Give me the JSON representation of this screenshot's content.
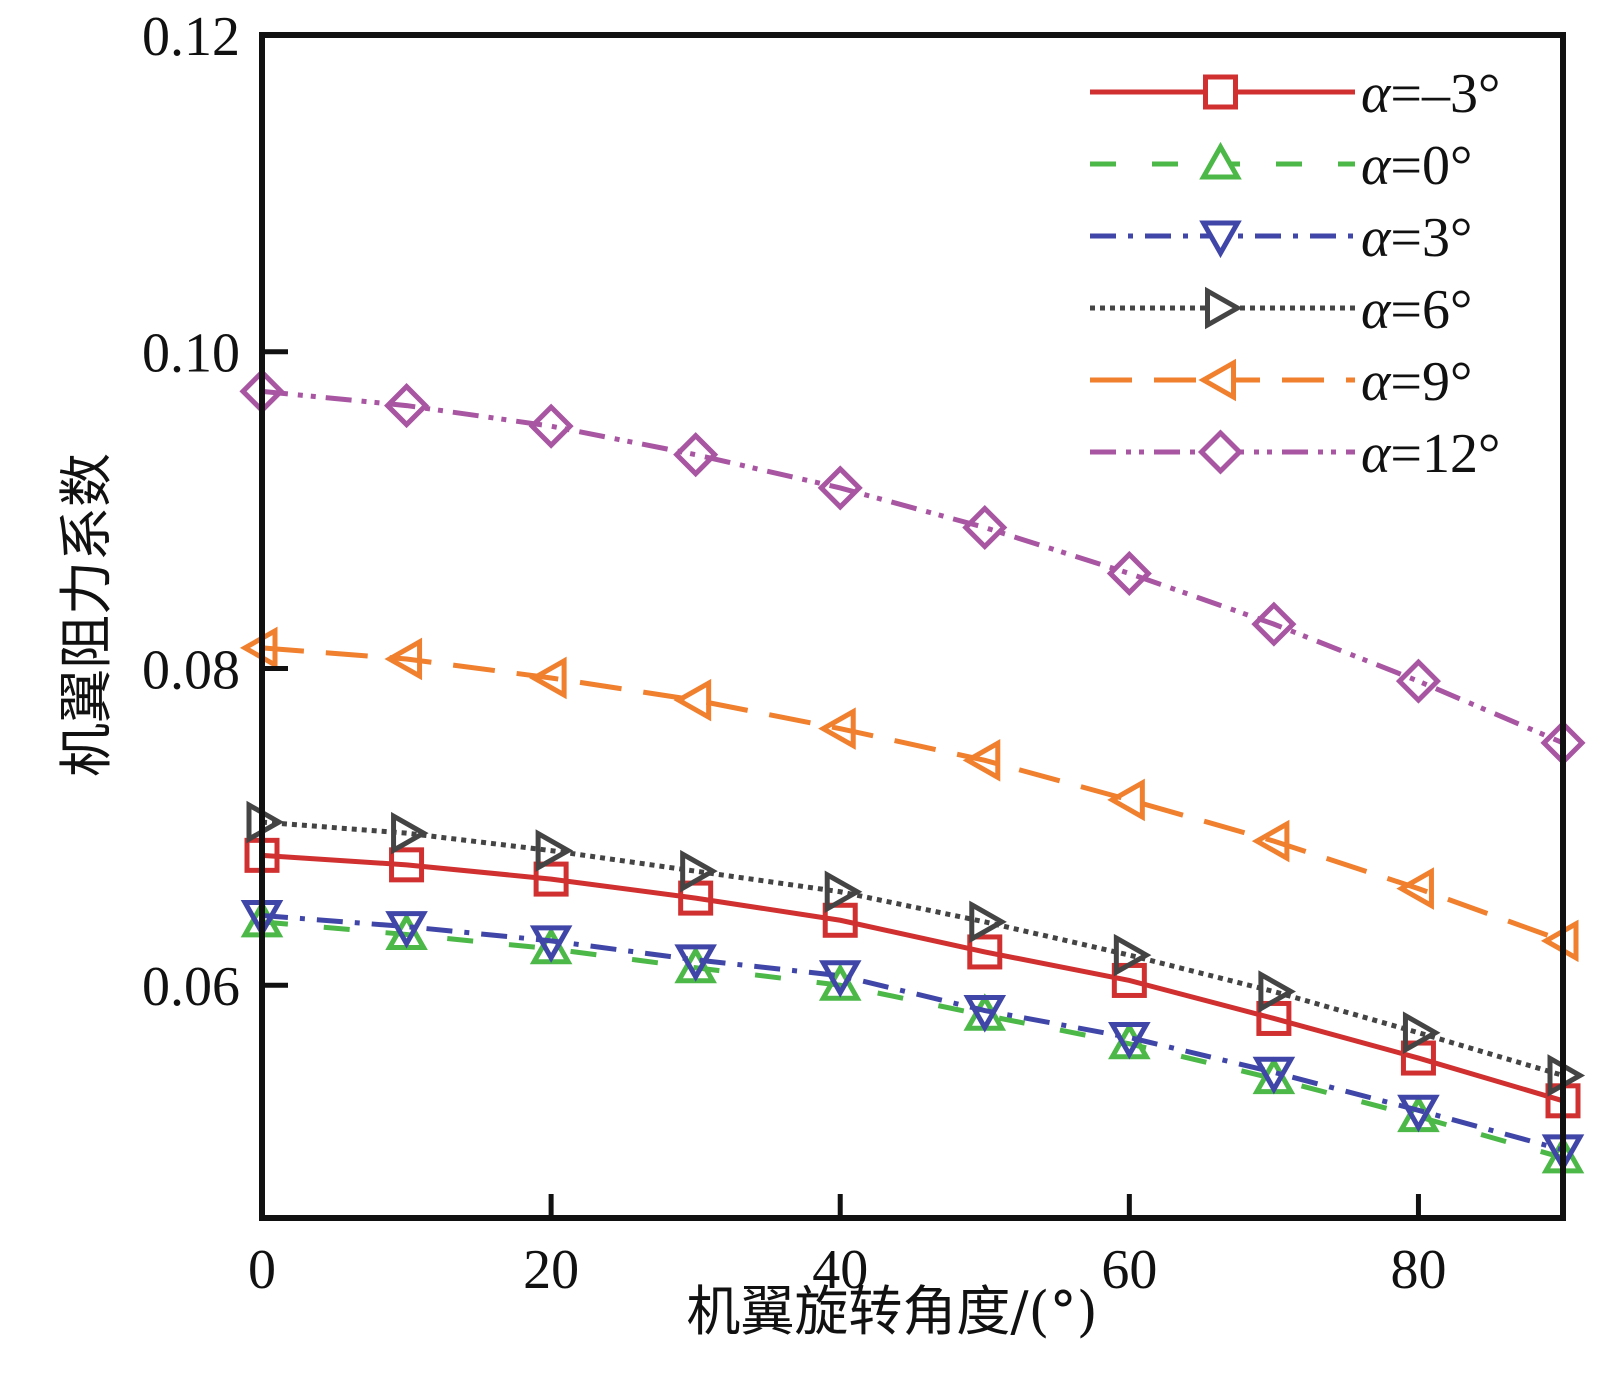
{
  "chart_data": {
    "type": "line",
    "title": "",
    "xlabel": "机翼旋转角度/(°)",
    "ylabel": "机翼阻力系数",
    "xlim": [
      0,
      90
    ],
    "ylim": [
      0.0453,
      0.12
    ],
    "xticks": [
      0,
      20,
      40,
      60,
      80
    ],
    "xtick_labels": [
      "0",
      "20",
      "40",
      "60",
      "80"
    ],
    "yticks": [
      0.06,
      0.08,
      0.1,
      0.12
    ],
    "ytick_labels": [
      "0.06",
      "0.08",
      "0.10",
      "0.12"
    ],
    "grid": false,
    "legend_position": "top-right",
    "x": [
      0,
      10,
      20,
      30,
      40,
      50,
      60,
      70,
      80,
      90
    ],
    "series": [
      {
        "name": "α=-3°",
        "label_symbol": "α",
        "label_rest": "=–3°",
        "color": "#d03030",
        "dash": "solid",
        "marker": "square",
        "values": [
          0.0682,
          0.0676,
          0.0667,
          0.0655,
          0.0641,
          0.0621,
          0.0603,
          0.0579,
          0.0554,
          0.0527
        ]
      },
      {
        "name": "α=0°",
        "label_symbol": "α",
        "label_rest": "=0°",
        "color": "#4cb848",
        "dash": "dashed",
        "marker": "triangle-up",
        "values": [
          0.064,
          0.0632,
          0.0623,
          0.0611,
          0.06,
          0.0581,
          0.0563,
          0.0541,
          0.0517,
          0.0491
        ]
      },
      {
        "name": "α=3°",
        "label_symbol": "α",
        "label_rest": "=3°",
        "color": "#3f46a8",
        "dash": "dashdot",
        "marker": "triangle-down",
        "values": [
          0.0644,
          0.0637,
          0.0628,
          0.0616,
          0.0606,
          0.0584,
          0.0567,
          0.0545,
          0.0521,
          0.0496
        ]
      },
      {
        "name": "α=6°",
        "label_symbol": "α",
        "label_rest": "=6°",
        "color": "#444444",
        "dash": "dotted",
        "marker": "triangle-right",
        "values": [
          0.0703,
          0.0696,
          0.0685,
          0.0672,
          0.0659,
          0.064,
          0.0619,
          0.0596,
          0.057,
          0.0543
        ]
      },
      {
        "name": "α=9°",
        "label_symbol": "α",
        "label_rest": "=9°",
        "color": "#f07f2e",
        "dash": "longdash",
        "marker": "triangle-left",
        "values": [
          0.0813,
          0.0806,
          0.0794,
          0.078,
          0.0762,
          0.0742,
          0.0717,
          0.0691,
          0.0661,
          0.0628
        ]
      },
      {
        "name": "α=12°",
        "label_symbol": "α",
        "label_rest": "=12°",
        "color": "#a855a2",
        "dash": "dashdotdot",
        "marker": "diamond",
        "values": [
          0.0975,
          0.0966,
          0.0953,
          0.0935,
          0.0914,
          0.0889,
          0.086,
          0.0828,
          0.0792,
          0.0753
        ]
      }
    ]
  }
}
